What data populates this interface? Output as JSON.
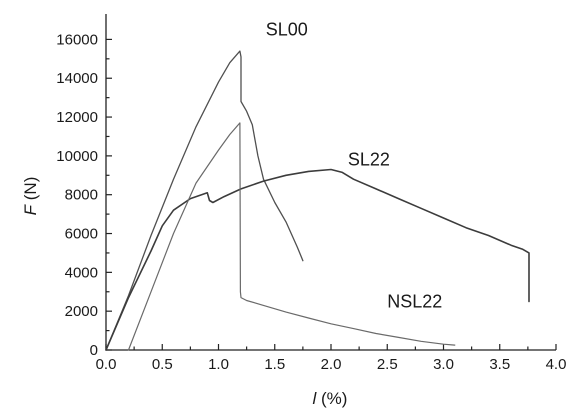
{
  "chart_data": {
    "type": "line",
    "title": "",
    "xlabel_italic": "l",
    "xlabel_unit": " (%)",
    "ylabel_italic": "F",
    "ylabel_unit": " (N)",
    "xlim": [
      0,
      4.0
    ],
    "ylim": [
      0,
      17000
    ],
    "xticks": [
      0,
      0.5,
      1.0,
      1.5,
      2.0,
      2.5,
      3.0,
      3.5,
      4.0
    ],
    "xtick_labels": [
      "0.0",
      "0.5",
      "1.0",
      "1.5",
      "2.0",
      "2.5",
      "3.0",
      "3.5",
      "4.0"
    ],
    "yticks": [
      0,
      2000,
      4000,
      6000,
      8000,
      10000,
      12000,
      14000,
      16000
    ],
    "ytick_labels": [
      "0",
      "2000",
      "4000",
      "6000",
      "8000",
      "10000",
      "12000",
      "14000",
      "16000"
    ],
    "grid": false,
    "legend": "none",
    "series": [
      {
        "name": "SL00",
        "color": "#505050",
        "x": [
          0.0,
          0.2,
          0.4,
          0.6,
          0.8,
          1.0,
          1.1,
          1.19,
          1.2,
          1.2,
          1.25,
          1.3,
          1.35,
          1.4,
          1.5,
          1.6,
          1.7,
          1.75
        ],
        "y": [
          0,
          2800,
          5900,
          8800,
          11500,
          13800,
          14800,
          15400,
          15100,
          12800,
          12300,
          11600,
          10000,
          8800,
          7600,
          6600,
          5300,
          4600
        ]
      },
      {
        "name": "SL22",
        "color": "#3c3c3c",
        "x": [
          0.0,
          0.2,
          0.4,
          0.5,
          0.6,
          0.75,
          0.9,
          0.92,
          0.95,
          1.05,
          1.2,
          1.4,
          1.6,
          1.8,
          2.0,
          2.1,
          2.2,
          2.4,
          2.6,
          2.8,
          3.0,
          3.2,
          3.4,
          3.6,
          3.7,
          3.76,
          3.76,
          3.76
        ],
        "y": [
          0,
          2700,
          5100,
          6400,
          7200,
          7800,
          8100,
          7700,
          7600,
          7900,
          8300,
          8700,
          9000,
          9200,
          9300,
          9150,
          8800,
          8300,
          7800,
          7300,
          6800,
          6300,
          5900,
          5400,
          5200,
          5000,
          3800,
          2500
        ]
      },
      {
        "name": "NSL22",
        "color": "#6a6a6a",
        "x": [
          0.2,
          0.4,
          0.6,
          0.8,
          1.0,
          1.1,
          1.19,
          1.195,
          1.2,
          1.25,
          1.4,
          1.6,
          1.8,
          2.0,
          2.2,
          2.4,
          2.6,
          2.8,
          3.0,
          3.1
        ],
        "y": [
          0,
          3000,
          6000,
          8600,
          10300,
          11100,
          11700,
          3000,
          2700,
          2550,
          2300,
          1950,
          1650,
          1350,
          1100,
          850,
          650,
          450,
          300,
          250
        ]
      }
    ],
    "annotations": [
      {
        "text": "SL00",
        "x": 1.42,
        "y": 16200
      },
      {
        "text": "SL22",
        "x": 2.15,
        "y": 9500
      },
      {
        "text": "NSL22",
        "x": 2.5,
        "y": 2200
      }
    ]
  }
}
